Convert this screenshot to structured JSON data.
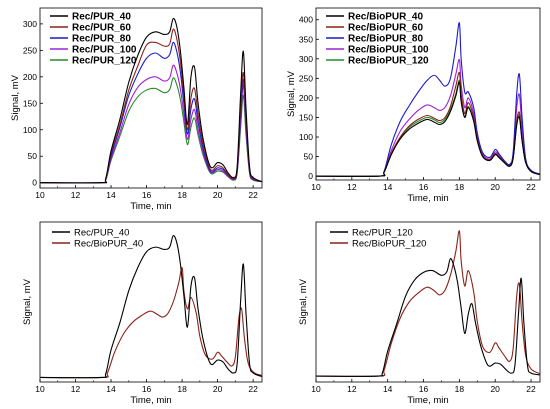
{
  "chart_data": [
    {
      "type": "line",
      "xlabel": "Time, min",
      "ylabel": "Signal, mV",
      "xlim": [
        10,
        22.5
      ],
      "ylim": [
        -10,
        330
      ],
      "xticks": [
        10,
        12,
        14,
        16,
        18,
        20,
        22
      ],
      "yticks": [
        0,
        50,
        100,
        150,
        200,
        250,
        300
      ],
      "legend": "top-left",
      "legend_bold": true,
      "series": [
        {
          "name": "Rec/PUR_40",
          "color": "#000000",
          "x": [
            10,
            13.4,
            13.7,
            14.0,
            14.5,
            15.0,
            15.5,
            16.0,
            16.5,
            17.0,
            17.3,
            17.5,
            17.7,
            17.9,
            18.1,
            18.3,
            18.5,
            18.7,
            18.9,
            19.2,
            19.6,
            20.0,
            20.3,
            20.6,
            20.9,
            21.1,
            21.3,
            21.45,
            21.6,
            21.8,
            22.0,
            22.5
          ],
          "y": [
            0,
            0,
            8,
            60,
            120,
            190,
            240,
            275,
            285,
            280,
            285,
            310,
            295,
            250,
            180,
            110,
            200,
            218,
            150,
            80,
            30,
            38,
            34,
            18,
            10,
            30,
            170,
            248,
            140,
            30,
            10,
            2
          ]
        },
        {
          "name": "Rec/PUR_60",
          "color": "#8b2218",
          "x": [
            10,
            13.4,
            13.7,
            14.0,
            14.5,
            15.0,
            15.5,
            16.0,
            16.5,
            17.0,
            17.3,
            17.5,
            17.7,
            17.9,
            18.1,
            18.3,
            18.5,
            18.7,
            18.9,
            19.2,
            19.6,
            20.0,
            20.3,
            20.6,
            20.9,
            21.1,
            21.3,
            21.45,
            21.6,
            21.8,
            22.0,
            22.5
          ],
          "y": [
            0,
            0,
            6,
            55,
            110,
            175,
            220,
            260,
            265,
            258,
            262,
            290,
            272,
            230,
            165,
            100,
            160,
            178,
            130,
            70,
            25,
            32,
            28,
            15,
            8,
            25,
            145,
            208,
            120,
            25,
            8,
            2
          ]
        },
        {
          "name": "Rec/PUR_80",
          "color": "#1a1acc",
          "x": [
            10,
            13.4,
            13.7,
            14.0,
            14.5,
            15.0,
            15.5,
            16.0,
            16.5,
            17.0,
            17.3,
            17.5,
            17.7,
            17.9,
            18.1,
            18.3,
            18.5,
            18.7,
            18.9,
            19.2,
            19.6,
            20.0,
            20.3,
            20.6,
            20.9,
            21.1,
            21.3,
            21.45,
            21.6,
            21.8,
            22.0,
            22.5
          ],
          "y": [
            0,
            0,
            6,
            50,
            105,
            165,
            205,
            235,
            245,
            235,
            242,
            265,
            248,
            210,
            150,
            92,
            140,
            158,
            115,
            62,
            22,
            28,
            25,
            14,
            7,
            22,
            130,
            195,
            110,
            22,
            7,
            2
          ]
        },
        {
          "name": "Rec/PUR_100",
          "color": "#a020d8",
          "x": [
            10,
            13.4,
            13.7,
            14.0,
            14.5,
            15.0,
            15.5,
            16.0,
            16.5,
            17.0,
            17.3,
            17.5,
            17.7,
            17.9,
            18.1,
            18.3,
            18.5,
            18.7,
            18.9,
            19.2,
            19.6,
            20.0,
            20.3,
            20.6,
            20.9,
            21.1,
            21.3,
            21.45,
            21.6,
            21.8,
            22.0,
            22.5
          ],
          "y": [
            0,
            0,
            5,
            45,
            95,
            148,
            180,
            195,
            200,
            192,
            198,
            222,
            208,
            178,
            130,
            82,
            120,
            138,
            100,
            55,
            20,
            25,
            22,
            12,
            6,
            20,
            118,
            185,
            100,
            20,
            6,
            2
          ]
        },
        {
          "name": "Rec/PUR_120",
          "color": "#2a8a2a",
          "x": [
            10,
            13.4,
            13.7,
            14.0,
            14.5,
            15.0,
            15.5,
            16.0,
            16.5,
            17.0,
            17.3,
            17.5,
            17.7,
            17.9,
            18.1,
            18.3,
            18.5,
            18.7,
            18.9,
            19.2,
            19.6,
            20.0,
            20.3,
            20.6,
            20.9,
            21.1,
            21.3,
            21.45,
            21.6,
            21.8,
            22.0,
            22.5
          ],
          "y": [
            0,
            0,
            5,
            42,
            88,
            135,
            162,
            175,
            178,
            170,
            176,
            198,
            185,
            158,
            115,
            72,
            105,
            122,
            90,
            50,
            18,
            22,
            20,
            11,
            5,
            18,
            105,
            165,
            90,
            18,
            5,
            2
          ]
        }
      ]
    },
    {
      "type": "line",
      "xlabel": "Time, min",
      "ylabel": "Signal, mV",
      "xlim": [
        10,
        22.5
      ],
      "ylim": [
        -10,
        430
      ],
      "xticks": [
        10,
        12,
        14,
        16,
        18,
        20,
        22
      ],
      "yticks": [
        0,
        50,
        100,
        150,
        200,
        250,
        300,
        350,
        400
      ],
      "legend": "top-left",
      "legend_bold": true,
      "series": [
        {
          "name": "Rec/BioPUR_40",
          "color": "#000000",
          "x": [
            10,
            13.5,
            13.8,
            14.2,
            14.7,
            15.2,
            15.7,
            16.2,
            16.6,
            16.9,
            17.2,
            17.5,
            17.8,
            18.0,
            18.1,
            18.3,
            18.5,
            18.8,
            19.0,
            19.3,
            19.7,
            20.0,
            20.2,
            20.5,
            20.8,
            21.0,
            21.2,
            21.35,
            21.5,
            21.7,
            22.0,
            22.5
          ],
          "y": [
            0,
            0,
            10,
            55,
            95,
            120,
            135,
            145,
            138,
            132,
            140,
            165,
            205,
            240,
            190,
            150,
            175,
            140,
            90,
            50,
            40,
            55,
            48,
            35,
            25,
            45,
            130,
            150,
            90,
            35,
            12,
            4
          ]
        },
        {
          "name": "Rec/BioPUR_60",
          "color": "#8b2218",
          "x": [
            10,
            13.5,
            13.8,
            14.2,
            14.7,
            15.2,
            15.7,
            16.2,
            16.6,
            16.9,
            17.2,
            17.5,
            17.8,
            18.0,
            18.1,
            18.3,
            18.5,
            18.8,
            19.0,
            19.3,
            19.7,
            20.0,
            20.2,
            20.5,
            20.8,
            21.0,
            21.2,
            21.35,
            21.5,
            21.7,
            22.0,
            22.5
          ],
          "y": [
            0,
            0,
            10,
            58,
            100,
            128,
            145,
            155,
            148,
            142,
            150,
            178,
            230,
            265,
            210,
            160,
            188,
            150,
            95,
            52,
            42,
            58,
            50,
            36,
            26,
            48,
            140,
            162,
            95,
            36,
            12,
            4
          ]
        },
        {
          "name": "Rec/BioPUR_80",
          "color": "#1a1acc",
          "x": [
            10,
            13.5,
            13.8,
            14.2,
            14.7,
            15.2,
            15.7,
            16.2,
            16.6,
            16.9,
            17.2,
            17.5,
            17.8,
            18.0,
            18.1,
            18.3,
            18.5,
            18.8,
            19.0,
            19.3,
            19.7,
            20.0,
            20.2,
            20.5,
            20.8,
            21.0,
            21.2,
            21.35,
            21.5,
            21.7,
            22.0,
            22.5
          ],
          "y": [
            0,
            0,
            12,
            80,
            140,
            180,
            215,
            245,
            258,
            245,
            230,
            250,
            330,
            392,
            300,
            215,
            215,
            175,
            110,
            60,
            48,
            68,
            58,
            40,
            30,
            60,
            210,
            260,
            150,
            45,
            15,
            5
          ]
        },
        {
          "name": "Rec/BioPUR_100",
          "color": "#a020d8",
          "x": [
            10,
            13.5,
            13.8,
            14.2,
            14.7,
            15.2,
            15.7,
            16.2,
            16.6,
            16.9,
            17.2,
            17.5,
            17.8,
            18.0,
            18.1,
            18.3,
            18.5,
            18.8,
            19.0,
            19.3,
            19.7,
            20.0,
            20.2,
            20.5,
            20.8,
            21.0,
            21.2,
            21.35,
            21.5,
            21.7,
            22.0,
            22.5
          ],
          "y": [
            0,
            0,
            11,
            65,
            115,
            145,
            168,
            182,
            175,
            168,
            176,
            205,
            260,
            298,
            235,
            175,
            200,
            160,
            100,
            55,
            44,
            62,
            54,
            38,
            28,
            54,
            175,
            208,
            120,
            40,
            14,
            4
          ]
        },
        {
          "name": "Rec/BioPUR_120",
          "color": "#2a8a2a",
          "x": [
            10,
            13.5,
            13.8,
            14.2,
            14.7,
            15.2,
            15.7,
            16.2,
            16.6,
            16.9,
            17.2,
            17.5,
            17.8,
            18.0,
            18.1,
            18.3,
            18.5,
            18.8,
            19.0,
            19.3,
            19.7,
            20.0,
            20.2,
            20.5,
            20.8,
            21.0,
            21.2,
            21.35,
            21.5,
            21.7,
            22.0,
            22.5
          ],
          "y": [
            0,
            0,
            10,
            55,
            98,
            125,
            140,
            150,
            144,
            137,
            145,
            170,
            210,
            245,
            195,
            152,
            178,
            142,
            92,
            50,
            40,
            56,
            48,
            35,
            25,
            46,
            135,
            155,
            92,
            35,
            12,
            4
          ]
        }
      ]
    },
    {
      "type": "line",
      "xlabel": "Time, min",
      "ylabel": "Signal, mV",
      "xlim": [
        10,
        22.5
      ],
      "ylim": [
        -10,
        340
      ],
      "xticks": [
        10,
        12,
        14,
        16,
        18,
        20,
        22
      ],
      "yticks": [],
      "legend": "top-left",
      "legend_bold": false,
      "series": [
        {
          "name": "Rec/PUR_40",
          "color": "#000000",
          "x": [
            10,
            13.4,
            13.7,
            14.0,
            14.5,
            15.0,
            15.5,
            16.0,
            16.5,
            17.0,
            17.3,
            17.5,
            17.7,
            17.9,
            18.1,
            18.3,
            18.5,
            18.7,
            18.9,
            19.2,
            19.6,
            20.0,
            20.3,
            20.6,
            20.9,
            21.1,
            21.3,
            21.45,
            21.6,
            21.8,
            22.0,
            22.5
          ],
          "y": [
            0,
            0,
            8,
            60,
            120,
            190,
            240,
            275,
            285,
            280,
            285,
            310,
            295,
            250,
            180,
            110,
            200,
            218,
            150,
            80,
            30,
            38,
            34,
            18,
            10,
            30,
            170,
            248,
            140,
            30,
            10,
            2
          ]
        },
        {
          "name": "Rec/BioPUR_40",
          "color": "#8b2218",
          "x": [
            10,
            13.5,
            13.8,
            14.2,
            14.7,
            15.2,
            15.7,
            16.2,
            16.6,
            16.9,
            17.2,
            17.5,
            17.8,
            18.0,
            18.1,
            18.3,
            18.5,
            18.8,
            19.0,
            19.3,
            19.7,
            20.0,
            20.2,
            20.5,
            20.8,
            21.0,
            21.2,
            21.35,
            21.5,
            21.7,
            22.0,
            22.5
          ],
          "y": [
            0,
            0,
            10,
            55,
            95,
            120,
            135,
            145,
            138,
            132,
            140,
            165,
            205,
            240,
            190,
            150,
            175,
            140,
            90,
            50,
            40,
            55,
            48,
            35,
            25,
            45,
            130,
            150,
            90,
            35,
            12,
            4
          ]
        }
      ]
    },
    {
      "type": "line",
      "xlabel": "Time, min",
      "ylabel": "Signal, mV",
      "xlim": [
        10,
        22.5
      ],
      "ylim": [
        -10,
        260
      ],
      "xticks": [
        10,
        12,
        14,
        16,
        18,
        20,
        22
      ],
      "yticks": [],
      "legend": "top-left",
      "legend_bold": false,
      "series": [
        {
          "name": "Rec/PUR_120",
          "color": "#000000",
          "x": [
            10,
            13.4,
            13.7,
            14.0,
            14.5,
            15.0,
            15.5,
            16.0,
            16.5,
            17.0,
            17.3,
            17.5,
            17.7,
            17.9,
            18.1,
            18.3,
            18.5,
            18.7,
            18.9,
            19.2,
            19.6,
            20.0,
            20.3,
            20.6,
            20.9,
            21.1,
            21.3,
            21.45,
            21.6,
            21.8,
            22.0,
            22.5
          ],
          "y": [
            0,
            0,
            5,
            42,
            88,
            135,
            162,
            175,
            178,
            170,
            176,
            198,
            185,
            158,
            115,
            72,
            105,
            122,
            90,
            50,
            18,
            22,
            20,
            11,
            5,
            18,
            105,
            165,
            90,
            18,
            5,
            2
          ]
        },
        {
          "name": "Rec/BioPUR_120",
          "color": "#8b2218",
          "x": [
            10,
            13.5,
            13.8,
            14.2,
            14.7,
            15.2,
            15.7,
            16.2,
            16.6,
            16.9,
            17.2,
            17.5,
            17.8,
            18.0,
            18.1,
            18.3,
            18.5,
            18.8,
            19.0,
            19.3,
            19.7,
            20.0,
            20.2,
            20.5,
            20.8,
            21.0,
            21.2,
            21.35,
            21.5,
            21.7,
            22.0,
            22.5
          ],
          "y": [
            0,
            0,
            10,
            55,
            98,
            125,
            140,
            150,
            144,
            137,
            145,
            170,
            210,
            245,
            195,
            152,
            178,
            142,
            92,
            50,
            40,
            56,
            48,
            35,
            25,
            46,
            135,
            155,
            92,
            35,
            12,
            4
          ]
        }
      ]
    }
  ]
}
